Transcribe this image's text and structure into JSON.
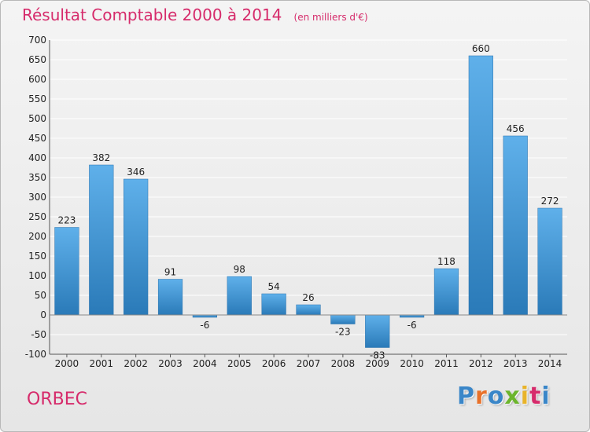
{
  "header": {
    "title": "Résultat Comptable 2000 à 2014",
    "subtitle": "(en milliers d'€)"
  },
  "footer": {
    "commune": "ORBEC",
    "brand_letters": [
      {
        "char": "P",
        "color": "#3a86c8"
      },
      {
        "char": "r",
        "color": "#e8712a"
      },
      {
        "char": "o",
        "color": "#3a86c8"
      },
      {
        "char": "x",
        "color": "#6cb52d"
      },
      {
        "char": "i",
        "color": "#e8b32a"
      },
      {
        "char": "t",
        "color": "#d62b6b"
      },
      {
        "char": "i",
        "color": "#3a86c8"
      }
    ]
  },
  "colors": {
    "title": "#d62b6b",
    "bar_light": "#5fb0ea",
    "bar_dark": "#2a7ab8",
    "grid": "#ffffff",
    "axis": "#555555"
  },
  "chart_data": {
    "type": "bar",
    "title": "Résultat Comptable 2000 à 2014",
    "subtitle": "(en milliers d'€)",
    "categories": [
      "2000",
      "2001",
      "2002",
      "2003",
      "2004",
      "2005",
      "2006",
      "2007",
      "2008",
      "2009",
      "2010",
      "2011",
      "2012",
      "2013",
      "2014"
    ],
    "values": [
      223,
      382,
      346,
      91,
      -6,
      98,
      54,
      26,
      -23,
      -83,
      -6,
      118,
      660,
      456,
      272
    ],
    "value_labels": [
      "223",
      "382",
      "346",
      "91",
      "-6",
      "98",
      "54",
      "26",
      "-23",
      "-83",
      "-6",
      "118",
      "660",
      "456",
      "272"
    ],
    "ylim": [
      -100,
      700
    ],
    "yticks": [
      -100,
      -50,
      0,
      50,
      100,
      150,
      200,
      250,
      300,
      350,
      400,
      450,
      500,
      550,
      600,
      650,
      700
    ],
    "ytick_labels": [
      "-100",
      "-50",
      "0",
      "50",
      "100",
      "150",
      "200",
      "250",
      "300",
      "350",
      "400",
      "450",
      "500",
      "550",
      "600",
      "650",
      "700"
    ],
    "grid": true,
    "legend": false
  }
}
